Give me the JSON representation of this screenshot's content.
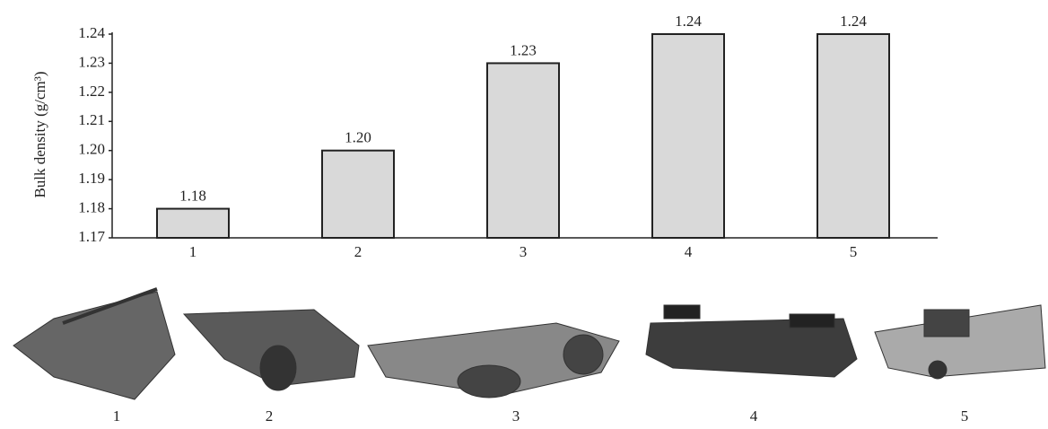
{
  "chart_data": {
    "type": "bar",
    "y_label": "Bulk density (g/cm³)",
    "categories": [
      "1",
      "2",
      "3",
      "4",
      "5"
    ],
    "values": [
      1.18,
      1.2,
      1.23,
      1.24,
      1.24
    ],
    "value_labels": [
      "1.18",
      "1.20",
      "1.23",
      "1.24",
      "1.24"
    ],
    "color": "#d9d9d9",
    "ylim": [
      1.17,
      1.24
    ],
    "yticks": [
      1.17,
      1.18,
      1.19,
      {
        "value": 1.2,
        "label": "1.20"
      },
      1.21,
      1.22,
      1.23,
      1.24
    ],
    "image_labels": [
      "1",
      "2",
      "3",
      "4",
      "5"
    ]
  }
}
